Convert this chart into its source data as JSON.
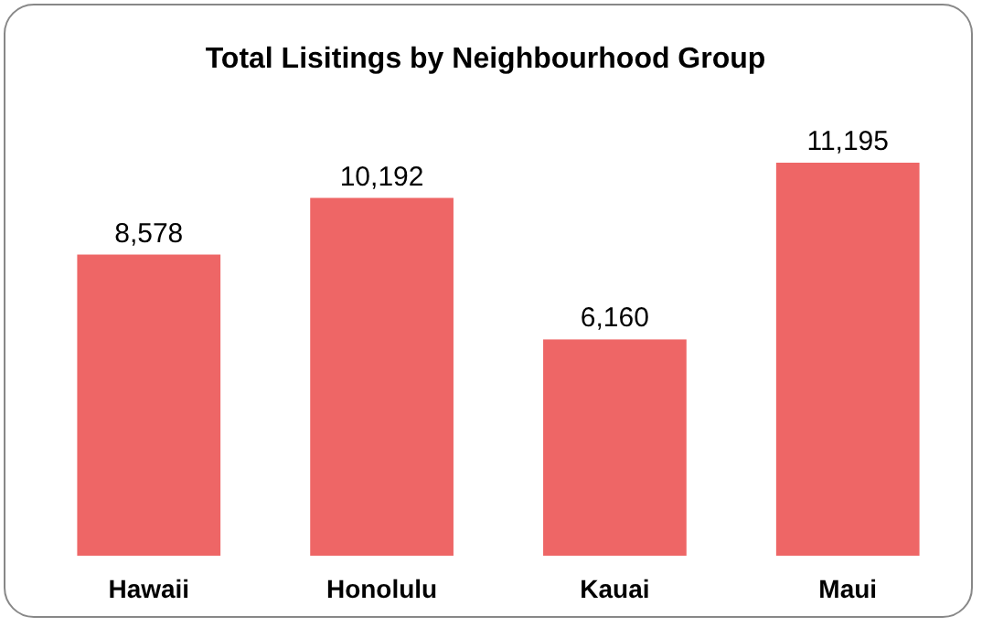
{
  "chart_data": {
    "type": "bar",
    "title": "Total Lisitings by Neighbourhood Group",
    "categories": [
      "Hawaii",
      "Honolulu",
      "Kauai",
      "Maui"
    ],
    "values": [
      8578,
      10192,
      6160,
      11195
    ],
    "value_labels": [
      "8,578",
      "10,192",
      "6,160",
      "11,195"
    ],
    "color": "#ee6666"
  }
}
